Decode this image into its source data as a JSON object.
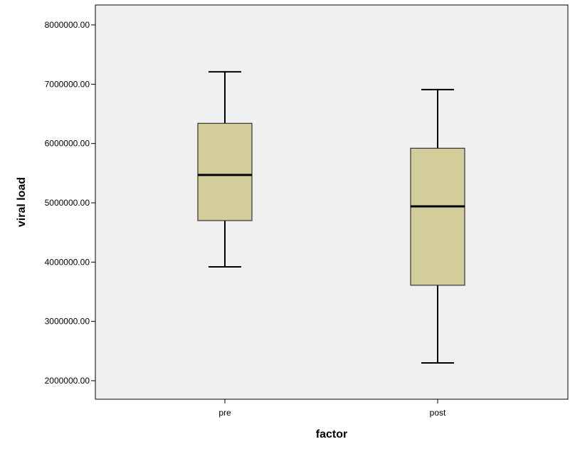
{
  "chart_data": {
    "type": "boxplot",
    "title": "",
    "xlabel": "factor",
    "ylabel": "viral load",
    "ylim": [
      1800000,
      8400000
    ],
    "yticks": [
      2000000,
      3000000,
      4000000,
      5000000,
      6000000,
      7000000,
      8000000
    ],
    "ytick_labels": [
      "2000000.00",
      "3000000.00",
      "4000000.00",
      "5000000.00",
      "6000000.00",
      "7000000.00",
      "8000000.00"
    ],
    "categories": [
      "pre",
      "post"
    ],
    "boxes": [
      {
        "category": "pre",
        "min": 3920000,
        "q1": 4700000,
        "median": 5470000,
        "q3": 6340000,
        "max": 7210000
      },
      {
        "category": "post",
        "min": 2300000,
        "q1": 3610000,
        "median": 4940000,
        "q3": 5920000,
        "max": 6910000
      }
    ],
    "grid": false,
    "colors": {
      "plot_background": "#f0f0f0",
      "box_fill": "#d3ce99",
      "box_stroke": "#000000"
    }
  }
}
